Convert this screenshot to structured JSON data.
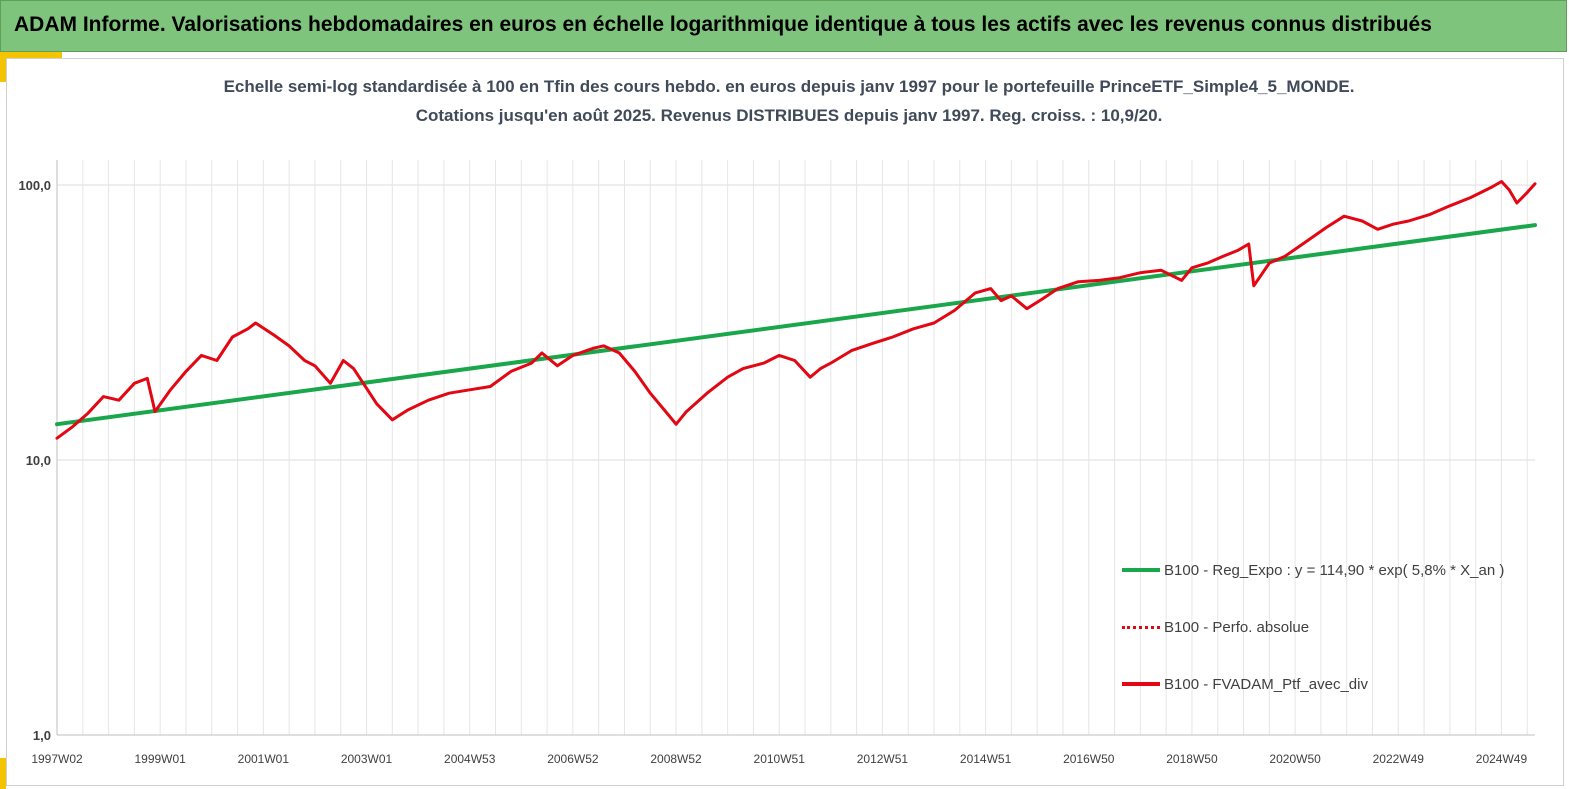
{
  "banner": {
    "title": "ADAM Informe. Valorisations hebdomadaires en euros en échelle logarithmique identique à tous les actifs avec les revenus connus distribués"
  },
  "colors": {
    "banner_bg": "#7fc47c",
    "accent": "#f5c400",
    "regression": "#1aa64a",
    "portfolio": "#e30613",
    "title_text": "#404a58"
  },
  "chart_data": {
    "type": "line",
    "title": "Echelle semi-log standardisée à 100 en Tfin des cours hebdo. en euros depuis janv 1997 pour le portefeuille PrinceETF_Simple4_5_MONDE.",
    "subtitle": "Cotations jusqu'en août 2025. Revenus DISTRIBUES depuis janv 1997. Reg. croiss. : 10,9/20.",
    "y_scale": "log",
    "ylim": [
      1,
      200
    ],
    "yticks": [
      {
        "value": 1,
        "label": "1,0"
      },
      {
        "value": 10,
        "label": "10,0"
      },
      {
        "value": 100,
        "label": "100,0"
      }
    ],
    "xlim": [
      1997.0,
      2025.65
    ],
    "xticks": [
      {
        "x": 1997.0,
        "label": "1997W02"
      },
      {
        "x": 1999.0,
        "label": "1999W01"
      },
      {
        "x": 2001.0,
        "label": "2001W01"
      },
      {
        "x": 2003.0,
        "label": "2003W01"
      },
      {
        "x": 2005.0,
        "label": "2004W53"
      },
      {
        "x": 2007.0,
        "label": "2006W52"
      },
      {
        "x": 2009.0,
        "label": "2008W52"
      },
      {
        "x": 2011.0,
        "label": "2010W51"
      },
      {
        "x": 2013.0,
        "label": "2012W51"
      },
      {
        "x": 2015.0,
        "label": "2014W51"
      },
      {
        "x": 2017.0,
        "label": "2016W50"
      },
      {
        "x": 2019.0,
        "label": "2018W50"
      },
      {
        "x": 2021.0,
        "label": "2020W50"
      },
      {
        "x": 2023.0,
        "label": "2022W49"
      },
      {
        "x": 2025.0,
        "label": "2024W49"
      }
    ],
    "grid": "vertical",
    "legend_position": "bottom-right",
    "series": [
      {
        "name": "B100 - Reg_Expo : y = 114,90 * exp( 5,8% *  X_an )",
        "color": "#1aa64a",
        "style": "solid",
        "x": [
          1997.0,
          2025.65
        ],
        "y": [
          13.5,
          71.5
        ]
      },
      {
        "name": "B100 - Perfo. absolue",
        "color": "#e30613",
        "style": "dotted",
        "x": [],
        "y": []
      },
      {
        "name": "B100 - FVADAM_Ptf_avec_div",
        "color": "#e30613",
        "style": "solid",
        "x": [
          1997.0,
          1997.3,
          1997.6,
          1997.9,
          1998.2,
          1998.5,
          1998.75,
          1998.9,
          1999.2,
          1999.5,
          1999.8,
          2000.1,
          2000.4,
          2000.7,
          2000.85,
          2001.2,
          2001.5,
          2001.8,
          2002.0,
          2002.3,
          2002.55,
          2002.75,
          2003.2,
          2003.5,
          2003.8,
          2004.2,
          2004.6,
          2005.0,
          2005.4,
          2005.8,
          2006.2,
          2006.4,
          2006.7,
          2007.0,
          2007.4,
          2007.6,
          2007.9,
          2008.2,
          2008.5,
          2008.8,
          2009.0,
          2009.2,
          2009.6,
          2010.0,
          2010.3,
          2010.7,
          2011.0,
          2011.3,
          2011.6,
          2011.8,
          2012.0,
          2012.4,
          2012.8,
          2013.2,
          2013.6,
          2014.0,
          2014.4,
          2014.8,
          2015.1,
          2015.3,
          2015.5,
          2015.8,
          2016.1,
          2016.4,
          2016.8,
          2017.2,
          2017.6,
          2018.0,
          2018.4,
          2018.8,
          2019.0,
          2019.3,
          2019.6,
          2019.9,
          2020.1,
          2020.2,
          2020.5,
          2020.8,
          2021.2,
          2021.6,
          2021.95,
          2022.3,
          2022.6,
          2022.9,
          2023.2,
          2023.6,
          2024.0,
          2024.4,
          2024.8,
          2025.0,
          2025.15,
          2025.3,
          2025.5,
          2025.65
        ],
        "y": [
          12.0,
          13.2,
          14.8,
          17.0,
          16.5,
          19.0,
          19.8,
          15.0,
          18.0,
          21.0,
          24.0,
          23.0,
          28.0,
          30.0,
          31.5,
          28.5,
          26.0,
          23.0,
          22.0,
          19.0,
          23.0,
          21.5,
          16.0,
          14.0,
          15.2,
          16.5,
          17.5,
          18.0,
          18.5,
          21.0,
          22.5,
          24.5,
          22.0,
          24.0,
          25.5,
          26.0,
          24.5,
          21.0,
          17.5,
          15.0,
          13.5,
          15.0,
          17.5,
          20.0,
          21.5,
          22.5,
          24.0,
          23.0,
          20.0,
          21.5,
          22.5,
          25.0,
          26.5,
          28.0,
          30.0,
          31.5,
          35.0,
          40.5,
          42.0,
          38.0,
          39.5,
          35.5,
          38.5,
          42.0,
          44.5,
          45.0,
          46.0,
          48.0,
          49.0,
          45.0,
          50.0,
          52.0,
          55.0,
          58.0,
          61.0,
          43.0,
          52.0,
          55.0,
          62.0,
          70.0,
          77.0,
          74.0,
          69.0,
          72.0,
          74.0,
          78.0,
          84.0,
          90.0,
          98.0,
          103.0,
          96.0,
          86.0,
          94.0,
          101.0
        ]
      }
    ]
  }
}
